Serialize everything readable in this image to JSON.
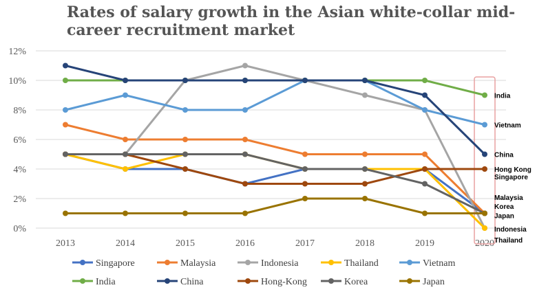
{
  "chart_data": {
    "type": "line",
    "title_lines": [
      "Rates of salary growth in the Asian white-collar mid-",
      "career recruitment market"
    ],
    "xlabel": "",
    "ylabel": "",
    "categories": [
      "2013",
      "2014",
      "2015",
      "2016",
      "2017",
      "2018",
      "2019",
      "2020"
    ],
    "yticks": [
      "0%",
      "2%",
      "4%",
      "6%",
      "8%",
      "10%",
      "12%"
    ],
    "ylim": [
      0,
      12
    ],
    "grid": true,
    "legend_position": "bottom",
    "highlight_category": "2020",
    "highlight_color": "#e8a0a0",
    "series": [
      {
        "name": "Singapore",
        "color": "#4472c4",
        "values": [
          5,
          4,
          4,
          3,
          4,
          4,
          4,
          1
        ]
      },
      {
        "name": "Malaysia",
        "color": "#ed7d31",
        "values": [
          7,
          6,
          6,
          6,
          5,
          5,
          5,
          1
        ]
      },
      {
        "name": "Indonesia",
        "color": "#a5a5a5",
        "values": [
          5,
          5,
          10,
          11,
          10,
          9,
          8,
          0
        ]
      },
      {
        "name": "Thailand",
        "color": "#ffc000",
        "values": [
          5,
          4,
          5,
          5,
          4,
          4,
          4,
          0
        ]
      },
      {
        "name": "Vietnam",
        "color": "#5b9bd5",
        "values": [
          8,
          9,
          8,
          8,
          10,
          10,
          8,
          7
        ]
      },
      {
        "name": "India",
        "color": "#70ad47",
        "values": [
          10,
          10,
          10,
          10,
          10,
          10,
          10,
          9
        ]
      },
      {
        "name": "China",
        "color": "#264478",
        "values": [
          11,
          10,
          10,
          10,
          10,
          10,
          9,
          5
        ]
      },
      {
        "name": "Hong-Kong",
        "color": "#9e480e",
        "values": [
          5,
          5,
          4,
          3,
          3,
          3,
          4,
          4
        ]
      },
      {
        "name": "Korea",
        "color": "#636363",
        "values": [
          5,
          5,
          5,
          5,
          4,
          4,
          3,
          1
        ]
      },
      {
        "name": "Japan",
        "color": "#997300",
        "values": [
          1,
          1,
          1,
          1,
          2,
          2,
          1,
          1
        ]
      }
    ],
    "end_labels": [
      {
        "text": "India",
        "value": 9.0
      },
      {
        "text": "Vietnam",
        "value": 7.0
      },
      {
        "text": "China",
        "value": 5.0
      },
      {
        "text": "Hong Kong",
        "value": 4.0
      },
      {
        "text": "Singapore",
        "value": 3.5
      },
      {
        "text": "Malaysia",
        "value": 2.1
      },
      {
        "text": "Korea",
        "value": 1.5
      },
      {
        "text": "Japan",
        "value": 0.85
      },
      {
        "text": "Indonesia",
        "value": -0.05
      },
      {
        "text": "Thailand",
        "value": -0.8
      }
    ]
  }
}
